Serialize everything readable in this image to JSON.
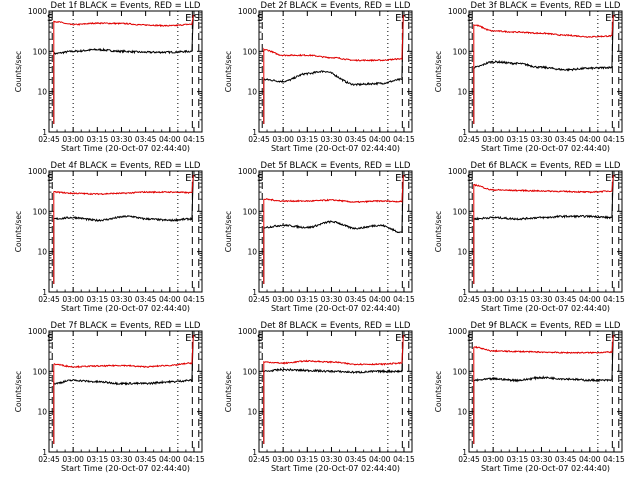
{
  "figure": {
    "shared_xlabel": "Start Time (20-Oct-07 02:44:40)",
    "shared_ylabel": "Counts/sec",
    "colors": {
      "events": "#000000",
      "lld": "#e00000",
      "axes": "#000000"
    }
  },
  "chart_data": [
    {
      "type": "line",
      "title": "Det 1f BLACK = Events, RED = LLD",
      "xlabel": "Start Time (20-Oct-07 02:44:40)",
      "ylabel": "Counts/sec",
      "y_scale": "log",
      "ylim": [
        1,
        1000
      ],
      "xlim": [
        "02:45",
        "04:20"
      ],
      "xticks": [
        "02:45",
        "03:00",
        "03:15",
        "03:30",
        "03:45",
        "04:00",
        "04:15"
      ],
      "yticks": [
        "1",
        "10",
        "100",
        "1000"
      ],
      "markers": {
        "s_times": [
          "02:47",
          "04:18"
        ],
        "e_times": [
          "04:14"
        ],
        "dotted_times": [
          "03:00",
          "04:05"
        ]
      },
      "series": [
        {
          "values": [
            [
              [
                "02:48",
                88
              ],
              [
                "03:00",
                100
              ],
              [
                "03:15",
                110
              ],
              [
                "03:30",
                100
              ],
              [
                "03:45",
                95
              ],
              [
                "04:00",
                95
              ],
              [
                "04:14",
                100
              ]
            ]
          ]
        },
        {
          "values": [
            [
              [
                "02:48",
                550
              ],
              [
                "03:00",
                460
              ],
              [
                "03:15",
                500
              ],
              [
                "03:30",
                490
              ],
              [
                "03:45",
                450
              ],
              [
                "04:00",
                430
              ],
              [
                "04:14",
                470
              ]
            ]
          ]
        }
      ]
    },
    {
      "type": "line",
      "title": "Det 2f BLACK = Events, RED = LLD",
      "xlabel": "Start Time (20-Oct-07 02:44:40)",
      "ylabel": "Counts/sec",
      "y_scale": "log",
      "ylim": [
        1,
        1000
      ],
      "xlim": [
        "02:45",
        "04:20"
      ],
      "xticks": [
        "02:45",
        "03:00",
        "03:15",
        "03:30",
        "03:45",
        "04:00",
        "04:15"
      ],
      "yticks": [
        "1",
        "10",
        "100",
        "1000"
      ],
      "markers": {
        "s_times": [
          "02:47",
          "04:18"
        ],
        "e_times": [
          "04:14"
        ],
        "dotted_times": [
          "03:00",
          "04:05"
        ]
      },
      "series": [
        {
          "values": [
            [
              [
                "02:48",
                20
              ],
              [
                "03:00",
                18
              ],
              [
                "03:15",
                28
              ],
              [
                "03:25",
                32
              ],
              [
                "03:45",
                15
              ],
              [
                "04:00",
                16
              ],
              [
                "04:14",
                20
              ]
            ]
          ]
        },
        {
          "values": [
            [
              [
                "02:48",
                110
              ],
              [
                "03:00",
                80
              ],
              [
                "03:15",
                80
              ],
              [
                "03:30",
                70
              ],
              [
                "03:45",
                60
              ],
              [
                "04:00",
                60
              ],
              [
                "04:14",
                65
              ]
            ]
          ]
        }
      ]
    },
    {
      "type": "line",
      "title": "Det 3f BLACK = Events, RED = LLD",
      "xlabel": "Start Time (20-Oct-07 02:44:40)",
      "ylabel": "Counts/sec",
      "y_scale": "log",
      "ylim": [
        1,
        1000
      ],
      "xlim": [
        "02:45",
        "04:20"
      ],
      "xticks": [
        "02:45",
        "03:00",
        "03:15",
        "03:30",
        "03:45",
        "04:00",
        "04:15"
      ],
      "yticks": [
        "1",
        "10",
        "100",
        "1000"
      ],
      "markers": {
        "s_times": [
          "02:47",
          "04:18"
        ],
        "e_times": [
          "04:14"
        ],
        "dotted_times": [
          "03:00",
          "04:05"
        ]
      },
      "series": [
        {
          "values": [
            [
              [
                "02:48",
                40
              ],
              [
                "03:00",
                55
              ],
              [
                "03:15",
                50
              ],
              [
                "03:30",
                40
              ],
              [
                "03:45",
                35
              ],
              [
                "04:00",
                38
              ],
              [
                "04:14",
                40
              ]
            ]
          ]
        },
        {
          "values": [
            [
              [
                "02:48",
                450
              ],
              [
                "03:00",
                320
              ],
              [
                "03:15",
                300
              ],
              [
                "03:30",
                280
              ],
              [
                "03:45",
                250
              ],
              [
                "04:00",
                230
              ],
              [
                "04:14",
                240
              ]
            ]
          ]
        }
      ]
    },
    {
      "type": "line",
      "title": "Det 4f BLACK = Events, RED = LLD",
      "xlabel": "Start Time (20-Oct-07 02:44:40)",
      "ylabel": "Counts/sec",
      "y_scale": "log",
      "ylim": [
        1,
        1000
      ],
      "xlim": [
        "02:45",
        "04:20"
      ],
      "xticks": [
        "02:45",
        "03:00",
        "03:15",
        "03:30",
        "03:45",
        "04:00",
        "04:15"
      ],
      "yticks": [
        "1",
        "10",
        "100",
        "1000"
      ],
      "markers": {
        "s_times": [
          "02:47",
          "04:18"
        ],
        "e_times": [
          "04:14"
        ],
        "dotted_times": [
          "03:00",
          "04:05"
        ]
      },
      "series": [
        {
          "values": [
            [
              [
                "02:48",
                65
              ],
              [
                "03:00",
                70
              ],
              [
                "03:15",
                60
              ],
              [
                "03:35",
                75
              ],
              [
                "03:45",
                65
              ],
              [
                "04:00",
                60
              ],
              [
                "04:14",
                65
              ]
            ]
          ]
        },
        {
          "values": [
            [
              [
                "02:48",
                300
              ],
              [
                "03:00",
                280
              ],
              [
                "03:15",
                270
              ],
              [
                "03:30",
                280
              ],
              [
                "03:45",
                300
              ],
              [
                "04:00",
                300
              ],
              [
                "04:14",
                290
              ]
            ]
          ]
        }
      ]
    },
    {
      "type": "line",
      "title": "Det 5f BLACK = Events, RED = LLD",
      "xlabel": "Start Time (20-Oct-07 02:44:40)",
      "ylabel": "Counts/sec",
      "y_scale": "log",
      "ylim": [
        1,
        1000
      ],
      "xlim": [
        "02:45",
        "04:20"
      ],
      "xticks": [
        "02:45",
        "03:00",
        "03:15",
        "03:30",
        "03:45",
        "04:00",
        "04:15"
      ],
      "yticks": [
        "1",
        "10",
        "100",
        "1000"
      ],
      "markers": {
        "s_times": [
          "02:47",
          "04:18"
        ],
        "e_times": [
          "04:14"
        ],
        "dotted_times": [
          "03:00",
          "04:05"
        ]
      },
      "series": [
        {
          "values": [
            [
              [
                "02:48",
                40
              ],
              [
                "03:00",
                45
              ],
              [
                "03:15",
                40
              ],
              [
                "03:30",
                55
              ],
              [
                "03:45",
                38
              ],
              [
                "04:00",
                45
              ],
              [
                "04:14",
                30
              ]
            ]
          ]
        },
        {
          "values": [
            [
              [
                "02:48",
                200
              ],
              [
                "03:00",
                180
              ],
              [
                "03:15",
                180
              ],
              [
                "03:30",
                190
              ],
              [
                "03:45",
                170
              ],
              [
                "04:00",
                180
              ],
              [
                "04:14",
                175
              ]
            ]
          ]
        }
      ]
    },
    {
      "type": "line",
      "title": "Det 6f BLACK = Events, RED = LLD",
      "xlabel": "Start Time (20-Oct-07 02:44:40)",
      "ylabel": "Counts/sec",
      "y_scale": "log",
      "ylim": [
        1,
        1000
      ],
      "xlim": [
        "02:45",
        "04:20"
      ],
      "xticks": [
        "02:45",
        "03:00",
        "03:15",
        "03:30",
        "03:45",
        "04:00",
        "04:15"
      ],
      "yticks": [
        "1",
        "10",
        "100",
        "1000"
      ],
      "markers": {
        "s_times": [
          "02:47",
          "04:18"
        ],
        "e_times": [
          "04:14"
        ],
        "dotted_times": [
          "03:00",
          "04:05"
        ]
      },
      "series": [
        {
          "values": [
            [
              [
                "02:48",
                65
              ],
              [
                "03:00",
                70
              ],
              [
                "03:15",
                65
              ],
              [
                "03:30",
                70
              ],
              [
                "03:45",
                75
              ],
              [
                "04:00",
                75
              ],
              [
                "04:14",
                70
              ]
            ]
          ]
        },
        {
          "values": [
            [
              [
                "02:48",
                450
              ],
              [
                "03:00",
                340
              ],
              [
                "03:15",
                330
              ],
              [
                "03:30",
                320
              ],
              [
                "03:45",
                310
              ],
              [
                "04:00",
                300
              ],
              [
                "04:14",
                320
              ]
            ]
          ]
        }
      ]
    },
    {
      "type": "line",
      "title": "Det 7f BLACK = Events, RED = LLD",
      "xlabel": "Start Time (20-Oct-07 02:44:40)",
      "ylabel": "Counts/sec",
      "y_scale": "log",
      "ylim": [
        1,
        1000
      ],
      "xlim": [
        "02:45",
        "04:20"
      ],
      "xticks": [
        "02:45",
        "03:00",
        "03:15",
        "03:30",
        "03:45",
        "04:00",
        "04:15"
      ],
      "yticks": [
        "1",
        "10",
        "100",
        "1000"
      ],
      "markers": {
        "s_times": [
          "02:47",
          "04:18"
        ],
        "e_times": [
          "04:14"
        ],
        "dotted_times": [
          "03:00",
          "04:05"
        ]
      },
      "series": [
        {
          "values": [
            [
              [
                "02:48",
                50
              ],
              [
                "03:00",
                60
              ],
              [
                "03:15",
                55
              ],
              [
                "03:30",
                50
              ],
              [
                "03:45",
                50
              ],
              [
                "04:00",
                55
              ],
              [
                "04:14",
                60
              ]
            ]
          ]
        },
        {
          "values": [
            [
              [
                "02:48",
                150
              ],
              [
                "03:00",
                130
              ],
              [
                "03:15",
                135
              ],
              [
                "03:30",
                140
              ],
              [
                "03:45",
                130
              ],
              [
                "04:00",
                140
              ],
              [
                "04:14",
                160
              ]
            ]
          ]
        }
      ]
    },
    {
      "type": "line",
      "title": "Det 8f BLACK = Events, RED = LLD",
      "xlabel": "Start Time (20-Oct-07 02:44:40)",
      "ylabel": "Counts/sec",
      "y_scale": "log",
      "ylim": [
        1,
        1000
      ],
      "xlim": [
        "02:45",
        "04:20"
      ],
      "xticks": [
        "02:45",
        "03:00",
        "03:15",
        "03:30",
        "03:45",
        "04:00",
        "04:15"
      ],
      "yticks": [
        "1",
        "10",
        "100",
        "1000"
      ],
      "markers": {
        "s_times": [
          "02:47",
          "04:18"
        ],
        "e_times": [
          "04:14"
        ],
        "dotted_times": [
          "03:00",
          "04:05"
        ]
      },
      "series": [
        {
          "values": [
            [
              [
                "02:48",
                100
              ],
              [
                "03:00",
                110
              ],
              [
                "03:15",
                105
              ],
              [
                "03:30",
                100
              ],
              [
                "03:45",
                95
              ],
              [
                "04:00",
                100
              ],
              [
                "04:14",
                100
              ]
            ]
          ]
        },
        {
          "values": [
            [
              [
                "02:48",
                170
              ],
              [
                "03:00",
                160
              ],
              [
                "03:15",
                180
              ],
              [
                "03:30",
                170
              ],
              [
                "03:45",
                150
              ],
              [
                "04:00",
                150
              ],
              [
                "04:14",
                160
              ]
            ]
          ]
        }
      ]
    },
    {
      "type": "line",
      "title": "Det 9f BLACK = Events, RED = LLD",
      "xlabel": "Start Time (20-Oct-07 02:44:40)",
      "ylabel": "Counts/sec",
      "y_scale": "log",
      "ylim": [
        1,
        1000
      ],
      "xlim": [
        "02:45",
        "04:20"
      ],
      "xticks": [
        "02:45",
        "03:00",
        "03:15",
        "03:30",
        "03:45",
        "04:00",
        "04:15"
      ],
      "yticks": [
        "1",
        "10",
        "100",
        "1000"
      ],
      "markers": {
        "s_times": [
          "02:47",
          "04:18"
        ],
        "e_times": [
          "04:14"
        ],
        "dotted_times": [
          "03:00",
          "04:05"
        ]
      },
      "series": [
        {
          "values": [
            [
              [
                "02:48",
                60
              ],
              [
                "03:00",
                65
              ],
              [
                "03:15",
                60
              ],
              [
                "03:30",
                70
              ],
              [
                "03:45",
                65
              ],
              [
                "04:00",
                60
              ],
              [
                "04:14",
                60
              ]
            ]
          ]
        },
        {
          "values": [
            [
              [
                "02:48",
                400
              ],
              [
                "03:00",
                320
              ],
              [
                "03:15",
                310
              ],
              [
                "03:30",
                300
              ],
              [
                "03:45",
                290
              ],
              [
                "04:00",
                290
              ],
              [
                "04:14",
                300
              ]
            ]
          ]
        }
      ]
    }
  ]
}
